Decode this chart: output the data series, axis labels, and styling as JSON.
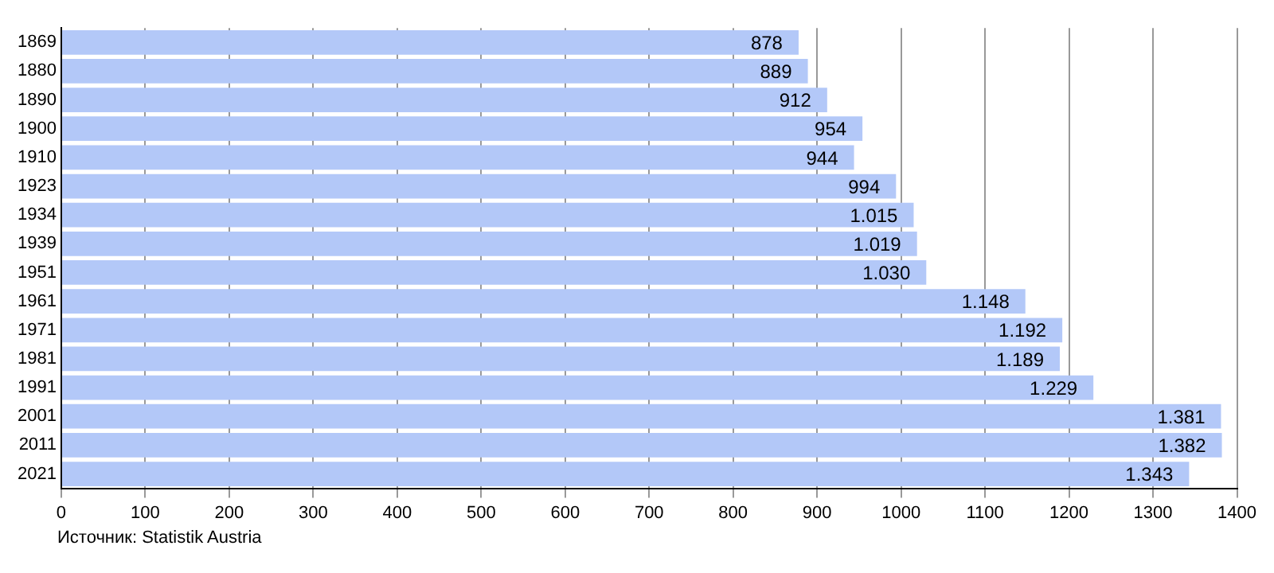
{
  "chart_data": {
    "type": "bar",
    "orientation": "horizontal",
    "categories": [
      "1869",
      "1880",
      "1890",
      "1900",
      "1910",
      "1923",
      "1934",
      "1939",
      "1951",
      "1961",
      "1971",
      "1981",
      "1991",
      "2001",
      "2011",
      "2021"
    ],
    "values": [
      878,
      889,
      912,
      954,
      944,
      994,
      1015,
      1019,
      1030,
      1148,
      1192,
      1189,
      1229,
      1381,
      1382,
      1343
    ],
    "value_labels": [
      "878",
      "889",
      "912",
      "954",
      "944",
      "994",
      "1.015",
      "1.019",
      "1.030",
      "1.148",
      "1.192",
      "1.189",
      "1.229",
      "1.381",
      "1.382",
      "1.343"
    ],
    "color": "#b3c8f8",
    "xlim": [
      0,
      1400
    ],
    "xticks": [
      0,
      100,
      200,
      300,
      400,
      500,
      600,
      700,
      800,
      900,
      1000,
      1100,
      1200,
      1300,
      1400
    ],
    "grid": "x",
    "legend": false,
    "annotations": [
      "Источник: Statistik Austria"
    ]
  }
}
